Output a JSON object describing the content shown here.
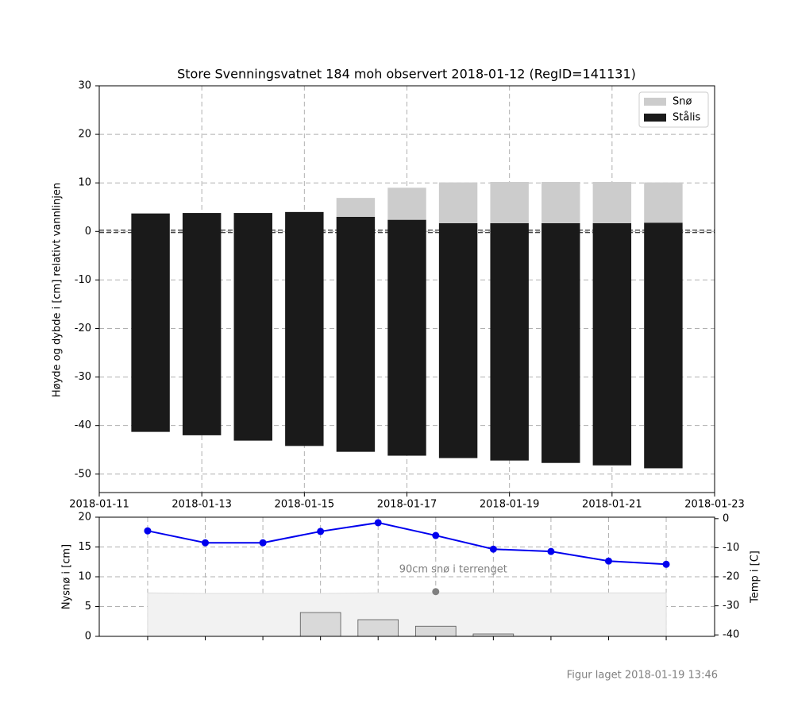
{
  "chart_data": [
    {
      "type": "bar",
      "title": "Store Svenningsvatnet 184 moh observert 2018-01-12 (RegID=141131)",
      "y_label": "Høyde og dybde i [cm] relativt vannlinjen",
      "x": [
        "2018-01-12",
        "2018-01-13",
        "2018-01-14",
        "2018-01-15",
        "2018-01-16",
        "2018-01-17",
        "2018-01-18",
        "2018-01-19",
        "2018-01-20",
        "2018-01-21",
        "2018-01-22"
      ],
      "series": [
        {
          "name": "Snø",
          "color": "#cccccc",
          "values": [
            0,
            0,
            0,
            0,
            3.9,
            6.6,
            8.4,
            8.5,
            8.5,
            8.5,
            8.3
          ]
        },
        {
          "name": "Stålis",
          "color": "#1a1a1a",
          "low": [
            -41.3,
            -42.0,
            -43.1,
            -44.2,
            -45.4,
            -46.2,
            -46.7,
            -47.2,
            -47.7,
            -48.2,
            -48.8
          ],
          "high": [
            3.7,
            3.8,
            3.8,
            4.0,
            3.0,
            2.4,
            1.7,
            1.7,
            1.7,
            1.7,
            1.8
          ]
        }
      ],
      "xlim": [
        "2018-01-11",
        "2018-01-23"
      ],
      "xticks": [
        "2018-01-11",
        "2018-01-13",
        "2018-01-15",
        "2018-01-17",
        "2018-01-19",
        "2018-01-21",
        "2018-01-23"
      ],
      "ylim": [
        -53.8,
        30
      ],
      "yticks": [
        30,
        20,
        10,
        0,
        -10,
        -20,
        -30,
        -40,
        -50
      ],
      "grid": true,
      "legend": "upper right"
    },
    {
      "type": "combo",
      "y_label": "Nysnø i [cm]",
      "y2_label": "Temp i [C]",
      "x": [
        0,
        1,
        2,
        3,
        4,
        5,
        6,
        7,
        8,
        9
      ],
      "xlim": [
        -0.84,
        9.84
      ],
      "xticks": [
        0,
        1,
        2,
        3,
        4,
        5,
        6,
        7,
        8,
        9
      ],
      "ylim": [
        0,
        20
      ],
      "yticks": [
        0,
        5,
        10,
        15,
        20
      ],
      "y2lim": [
        -40.5,
        0.5
      ],
      "y2ticks": [
        0,
        -10,
        -20,
        -30,
        -40
      ],
      "series": [
        {
          "kind": "area",
          "color": "#f2f2f2",
          "values": [
            7.3,
            7.2,
            7.2,
            7.2,
            7.3,
            7.3,
            7.3,
            7.3,
            7.3,
            7.3
          ]
        },
        {
          "kind": "bar",
          "color": "#d9d9d9",
          "values": [
            0,
            0,
            0,
            4.0,
            2.8,
            1.7,
            0.4,
            0,
            0,
            0
          ]
        },
        {
          "kind": "line",
          "axis": "y2",
          "color": "#0000ee",
          "values": [
            -4.2,
            -8.3,
            -8.3,
            -4.4,
            -1.4,
            -5.8,
            -10.5,
            -11.3,
            -14.6,
            -15.7
          ]
        }
      ],
      "annotation": {
        "text": "90cm snø i terrenget",
        "x": 5,
        "y": 7.5,
        "color": "#808080"
      },
      "grid": true
    }
  ],
  "footer": "Figur laget 2018-01-19 13:46"
}
